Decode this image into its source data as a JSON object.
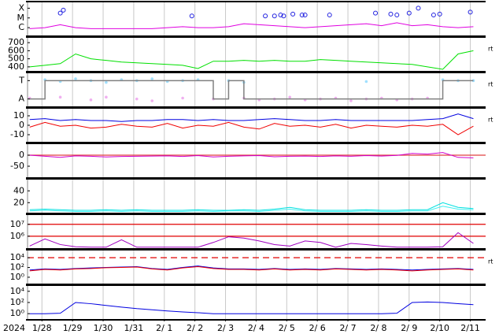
{
  "chart_data": [
    {
      "type": "line",
      "xlim": [
        -0.47,
        14.5
      ],
      "ylim": [
        0.2,
        3.6
      ],
      "xgrid": true,
      "yticks": [
        {
          "value": 3,
          "label": "X"
        },
        {
          "value": 2,
          "label": "M"
        },
        {
          "value": 1,
          "label": "C"
        }
      ],
      "x": [
        -0.4,
        0.1,
        0.6,
        1.1,
        1.6,
        2.1,
        2.6,
        3.1,
        3.6,
        4.1,
        4.6,
        5.1,
        5.6,
        6.1,
        6.6,
        7.1,
        7.6,
        8.1,
        8.6,
        9.1,
        9.6,
        10.1,
        10.6,
        11.1,
        11.6,
        12.1,
        12.6,
        13.1,
        13.6,
        14.1
      ],
      "series": [
        {
          "color": "#e000e0",
          "style": "line",
          "values": [
            0.9,
            1.0,
            1.3,
            1.0,
            0.9,
            0.9,
            0.9,
            0.9,
            0.9,
            1.0,
            1.1,
            1.0,
            1.0,
            1.1,
            1.4,
            1.3,
            1.2,
            1.1,
            1.0,
            1.1,
            1.2,
            1.3,
            1.4,
            1.2,
            1.5,
            1.2,
            1.3,
            1.1,
            1.0,
            1.1
          ]
        },
        {
          "color": "#2020e0",
          "style": "markers",
          "x": [
            0.6,
            0.7,
            4.9,
            7.3,
            7.6,
            7.8,
            7.9,
            8.2,
            8.5,
            8.6,
            9.4,
            10.9,
            11.4,
            11.6,
            12.0,
            12.3,
            12.8,
            13.0,
            14.0
          ],
          "values": [
            2.5,
            2.8,
            2.2,
            2.2,
            2.2,
            2.3,
            2.2,
            2.4,
            2.3,
            2.3,
            2.3,
            2.5,
            2.4,
            2.3,
            2.5,
            3.0,
            2.3,
            2.4,
            2.6
          ]
        }
      ]
    },
    {
      "type": "line",
      "xlim": [
        -0.47,
        14.5
      ],
      "ylim": [
        350,
        760
      ],
      "xgrid": true,
      "side_label": "rt",
      "yticks": [
        700,
        600,
        500,
        400
      ],
      "x": [
        -0.4,
        0.1,
        0.6,
        1.1,
        1.6,
        2.1,
        2.6,
        3.1,
        3.6,
        4.1,
        4.6,
        5.1,
        5.6,
        6.1,
        6.6,
        7.1,
        7.6,
        8.1,
        8.6,
        9.1,
        9.6,
        10.1,
        10.6,
        11.1,
        11.6,
        12.1,
        12.6,
        13.1,
        13.6,
        14.1
      ],
      "series": [
        {
          "color": "#00e000",
          "style": "line",
          "values": [
            400,
            420,
            440,
            560,
            500,
            480,
            460,
            450,
            440,
            430,
            420,
            380,
            470,
            470,
            480,
            470,
            480,
            470,
            470,
            490,
            480,
            470,
            460,
            450,
            440,
            430,
            400,
            370,
            560,
            600
          ]
        }
      ]
    },
    {
      "type": "line",
      "xlim": [
        -0.47,
        14.5
      ],
      "ylim": [
        -0.4,
        1.4
      ],
      "xgrid": true,
      "side_label": "rt",
      "yticks": [
        {
          "value": 1,
          "label": "T"
        },
        {
          "value": 0,
          "label": "A"
        }
      ],
      "x": [
        -0.4,
        0.1,
        0.6,
        1.1,
        1.6,
        2.1,
        2.6,
        3.1,
        3.6,
        4.1,
        4.6,
        5.1,
        5.6,
        6.1,
        6.6,
        7.1,
        7.6,
        8.1,
        8.6,
        9.1,
        9.6,
        10.1,
        10.6,
        11.1,
        11.6,
        12.1,
        12.6,
        13.1,
        13.6,
        14.1
      ],
      "series": [
        {
          "color": "#a0e0ff",
          "style": "dots",
          "values": [
            null,
            1.05,
            0.95,
            1.1,
            1.0,
            0.9,
            1.05,
            1.0,
            1.1,
            0.95,
            1.0,
            1.05,
            null,
            1.0,
            0.9,
            null,
            null,
            null,
            null,
            null,
            null,
            null,
            0.95,
            null,
            null,
            null,
            null,
            1.05,
            1.0,
            1.0
          ]
        },
        {
          "color": "#f0b0f0",
          "style": "dots",
          "values": [
            0.05,
            null,
            0.1,
            null,
            -0.05,
            0.1,
            null,
            0.0,
            -0.1,
            null,
            0.05,
            null,
            0.0,
            null,
            0.05,
            -0.05,
            0.0,
            0.1,
            -0.05,
            0.0,
            0.05,
            -0.1,
            0.0,
            0.05,
            -0.05,
            0.0,
            0.05,
            null,
            null,
            null
          ]
        },
        {
          "color": "#808080",
          "style": "step",
          "values": [
            0,
            1,
            1,
            1,
            1,
            1,
            1,
            1,
            1,
            1,
            1,
            1,
            0,
            1,
            0,
            0,
            0,
            0,
            0,
            0,
            0,
            0,
            0,
            0,
            0,
            0,
            0,
            1,
            1,
            1
          ]
        }
      ]
    },
    {
      "type": "line",
      "xlim": [
        -0.47,
        14.5
      ],
      "ylim": [
        -17.5,
        17.5
      ],
      "xgrid": true,
      "side_label": "rt",
      "yticks": [
        10,
        0,
        -10
      ],
      "x": [
        -0.4,
        0.1,
        0.6,
        1.1,
        1.6,
        2.1,
        2.6,
        3.1,
        3.6,
        4.1,
        4.6,
        5.1,
        5.6,
        6.1,
        6.6,
        7.1,
        7.6,
        8.1,
        8.6,
        9.1,
        9.6,
        10.1,
        10.6,
        11.1,
        11.6,
        12.1,
        12.6,
        13.1,
        13.6,
        14.1
      ],
      "series": [
        {
          "color": "#0000e0",
          "style": "line",
          "values": [
            6,
            7,
            5,
            6,
            5,
            5,
            4,
            5,
            5,
            6,
            6,
            5,
            6,
            5,
            5,
            6,
            7,
            6,
            5,
            5,
            6,
            5,
            5,
            5,
            5,
            5,
            6,
            7,
            12,
            7
          ]
        },
        {
          "color": "#f00000",
          "style": "line",
          "values": [
            -2,
            3,
            -1,
            0,
            -3,
            -2,
            1,
            -1,
            -2,
            2,
            -3,
            0,
            -1,
            3,
            -2,
            -4,
            2,
            -1,
            0,
            -2,
            1,
            -3,
            0,
            -1,
            -2,
            0,
            -1,
            1,
            -10,
            -1
          ]
        }
      ]
    },
    {
      "type": "line",
      "xlim": [
        -0.47,
        14.5
      ],
      "ylim": [
        -100,
        50
      ],
      "xgrid": true,
      "yticks": [
        0,
        -50
      ],
      "ref_lines": [
        {
          "value": 0,
          "color": "#e04040",
          "dashed": false
        }
      ],
      "x": [
        -0.4,
        0.1,
        0.6,
        1.1,
        1.6,
        2.1,
        2.6,
        3.1,
        3.6,
        4.1,
        4.6,
        5.1,
        5.6,
        6.1,
        6.6,
        7.1,
        7.6,
        8.1,
        8.6,
        9.1,
        9.6,
        10.1,
        10.6,
        11.1,
        11.6,
        12.1,
        12.6,
        13.1,
        13.6,
        14.1
      ],
      "series": [
        {
          "color": "#d000d0",
          "style": "line",
          "values": [
            0,
            -5,
            -10,
            -3,
            -5,
            -8,
            -6,
            -5,
            -4,
            -3,
            -6,
            -2,
            -8,
            -5,
            -3,
            -2,
            -7,
            -5,
            -4,
            -6,
            -3,
            -5,
            -2,
            -4,
            -1,
            8,
            5,
            12,
            -10,
            -12
          ]
        }
      ]
    },
    {
      "type": "line",
      "xlim": [
        -0.47,
        14.5
      ],
      "ylim": [
        3,
        59
      ],
      "xgrid": true,
      "yticks": [
        40,
        20
      ],
      "x": [
        -0.4,
        0.1,
        0.6,
        1.1,
        1.6,
        2.1,
        2.6,
        3.1,
        3.6,
        4.1,
        4.6,
        5.1,
        5.6,
        6.1,
        6.6,
        7.1,
        7.6,
        8.1,
        8.6,
        9.1,
        9.6,
        10.1,
        10.6,
        11.1,
        11.6,
        12.1,
        12.6,
        13.1,
        13.6,
        14.1
      ],
      "series": [
        {
          "color": "#00e0e0",
          "style": "line",
          "values": [
            8,
            9,
            8,
            7,
            7,
            8,
            7,
            8,
            7,
            7,
            7,
            8,
            7,
            7,
            8,
            7,
            9,
            12,
            8,
            7,
            7,
            7,
            8,
            7,
            7,
            8,
            8,
            20,
            12,
            10
          ]
        },
        {
          "color": "#40f0f0",
          "style": "line",
          "values": [
            6,
            7,
            6,
            5,
            5,
            6,
            5,
            6,
            5,
            5,
            5,
            6,
            5,
            6,
            6,
            5,
            7,
            9,
            6,
            5,
            5,
            5,
            6,
            5,
            5,
            6,
            6,
            14,
            9,
            8
          ]
        }
      ]
    },
    {
      "type": "line",
      "xlim": [
        -0.47,
        14.5
      ],
      "ylim": [
        100000,
        60000000
      ],
      "yscale": "log",
      "xgrid": true,
      "yticks": [
        {
          "value": 10000000,
          "label": "10⁷"
        },
        {
          "value": 1000000,
          "label": "10⁶"
        }
      ],
      "ref_lines": [
        {
          "value": 10000000,
          "color": "#e00000",
          "dashed": false
        },
        {
          "value": 1000000,
          "color": "#e00000",
          "dashed": false
        }
      ],
      "x": [
        -0.4,
        0.1,
        0.6,
        1.1,
        1.6,
        2.1,
        2.6,
        3.1,
        3.6,
        4.1,
        4.6,
        5.1,
        5.6,
        6.1,
        6.6,
        7.1,
        7.6,
        8.1,
        8.6,
        9.1,
        9.6,
        10.1,
        10.6,
        11.1,
        11.6,
        12.1,
        12.6,
        13.1,
        13.6,
        14.1
      ],
      "series": [
        {
          "color": "#a000c0",
          "style": "line",
          "values": [
            150000,
            600000,
            200000,
            130000,
            120000,
            120000,
            500000,
            120000,
            120000,
            120000,
            120000,
            120000,
            300000,
            900000,
            700000,
            400000,
            200000,
            150000,
            400000,
            300000,
            120000,
            250000,
            200000,
            150000,
            120000,
            120000,
            120000,
            130000,
            2000000,
            250000
          ]
        }
      ]
    },
    {
      "type": "line",
      "xlim": [
        -0.47,
        14.5
      ],
      "ylim": [
        0.05,
        300000
      ],
      "yscale": "log",
      "xgrid": true,
      "side_label": "rt",
      "yticks": [
        {
          "value": 10000,
          "label": "10⁴"
        },
        {
          "value": 100,
          "label": "10²"
        },
        {
          "value": 1,
          "label": "10⁰"
        }
      ],
      "ref_lines": [
        {
          "value": 10000,
          "color": "#e00000",
          "dashed": true
        }
      ],
      "x": [
        -0.4,
        0.1,
        0.6,
        1.1,
        1.6,
        2.1,
        2.6,
        3.1,
        3.6,
        4.1,
        4.6,
        5.1,
        5.6,
        6.1,
        6.6,
        7.1,
        7.6,
        8.1,
        8.6,
        9.1,
        9.6,
        10.1,
        10.6,
        11.1,
        11.6,
        12.1,
        12.6,
        13.1,
        13.6,
        14.1
      ],
      "series": [
        {
          "color": "#0000e0",
          "style": "line",
          "values": [
            30,
            50,
            40,
            60,
            80,
            100,
            120,
            150,
            60,
            40,
            100,
            200,
            80,
            50,
            50,
            40,
            60,
            40,
            50,
            40,
            60,
            50,
            40,
            50,
            40,
            30,
            40,
            50,
            60,
            40
          ]
        },
        {
          "color": "#f00000",
          "style": "line",
          "values": [
            20,
            40,
            30,
            50,
            60,
            90,
            100,
            120,
            50,
            30,
            80,
            150,
            60,
            40,
            40,
            30,
            50,
            30,
            40,
            30,
            50,
            40,
            30,
            40,
            30,
            20,
            30,
            40,
            50,
            30
          ]
        }
      ]
    },
    {
      "type": "line",
      "xlim": [
        -0.47,
        14.5
      ],
      "ylim": [
        0.11,
        90000
      ],
      "yscale": "log",
      "xgrid": true,
      "year_label": "2024",
      "yticks": [
        {
          "value": 10000,
          "label": "10⁴"
        },
        {
          "value": 100,
          "label": "10²"
        },
        {
          "value": 1,
          "label": "10⁰"
        }
      ],
      "xticks": [
        {
          "value": 0,
          "label": "1/28"
        },
        {
          "value": 1,
          "label": "1/29"
        },
        {
          "value": 2,
          "label": "1/30"
        },
        {
          "value": 3,
          "label": "1/31"
        },
        {
          "value": 4,
          "label": "2/ 1"
        },
        {
          "value": 5,
          "label": "2/ 2"
        },
        {
          "value": 6,
          "label": "2/ 3"
        },
        {
          "value": 7,
          "label": "2/ 4"
        },
        {
          "value": 8,
          "label": "2/ 5"
        },
        {
          "value": 9,
          "label": "2/ 6"
        },
        {
          "value": 10,
          "label": "2/ 7"
        },
        {
          "value": 11,
          "label": "2/ 8"
        },
        {
          "value": 12,
          "label": "2/ 9"
        },
        {
          "value": 13,
          "label": "2/10"
        },
        {
          "value": 14,
          "label": "2/11"
        }
      ],
      "x": [
        -0.4,
        0.1,
        0.6,
        1.1,
        1.6,
        2.1,
        2.6,
        3.1,
        3.6,
        4.1,
        4.6,
        5.1,
        5.6,
        6.1,
        6.6,
        7.1,
        7.6,
        8.1,
        8.6,
        9.1,
        9.6,
        10.1,
        10.6,
        11.1,
        11.6,
        12.1,
        12.6,
        13.1,
        13.6,
        14.1
      ],
      "series": [
        {
          "color": "#0000e0",
          "style": "line",
          "values": [
            1,
            1,
            1.2,
            100,
            60,
            30,
            15,
            8,
            5,
            3,
            2,
            1.5,
            1,
            1,
            1,
            1,
            1,
            1,
            1,
            1,
            1,
            1,
            1,
            1,
            1.2,
            100,
            120,
            100,
            60,
            40
          ]
        }
      ]
    }
  ]
}
